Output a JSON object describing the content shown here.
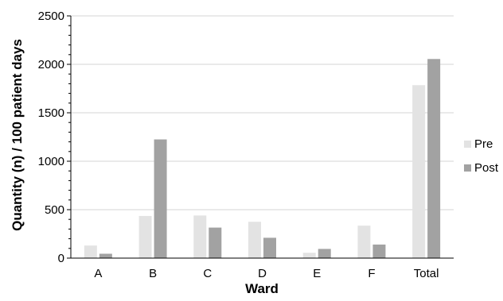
{
  "chart_data": {
    "type": "bar",
    "title": "",
    "xlabel": "Ward",
    "ylabel": "Quantity (n) / 100 patient days",
    "categories": [
      "A",
      "B",
      "C",
      "D",
      "E",
      "F",
      "Total"
    ],
    "series": [
      {
        "name": "Pre",
        "color": "#e3e3e3",
        "values": [
          130,
          435,
          440,
          375,
          55,
          335,
          1785
        ]
      },
      {
        "name": "Post",
        "color": "#a2a2a2",
        "values": [
          45,
          1225,
          315,
          210,
          95,
          140,
          2055
        ]
      }
    ],
    "ylim": [
      0,
      2500
    ],
    "yticks": [
      0,
      500,
      1000,
      1500,
      2000,
      2500
    ],
    "grid": true,
    "legend_position": "right"
  }
}
